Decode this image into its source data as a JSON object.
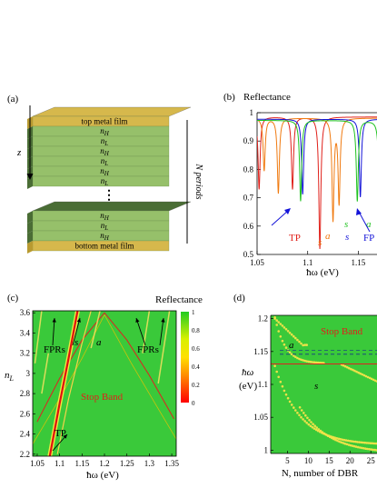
{
  "panel_a": {
    "label": "(a)",
    "top_film": "top metal film",
    "bottom_film": "bottom metal film",
    "layers_top": [
      "n_H",
      "n_L",
      "n_H",
      "n_L",
      "n_H",
      "n_L"
    ],
    "layers_bottom": [
      "n_H",
      "n_L",
      "n_H"
    ],
    "z_label": "z",
    "periods_label": "N periods",
    "colors": {
      "dark_layer": "#4a6d35",
      "light_layer": "#96c06a",
      "metal": "#d6b84c"
    }
  },
  "panel_b": {
    "label": "(b)",
    "title": "Reflectance",
    "xlabel": "ħω (eV)",
    "xticks": [
      "1.05",
      "1.1",
      "1.15"
    ],
    "yticks": [
      "0.5",
      "0.6",
      "0.7",
      "0.8",
      "0.9",
      "1"
    ],
    "annotations": {
      "tp": "TP",
      "fp": "FP",
      "s": "s",
      "a": "a"
    },
    "colors": {
      "red": "#e0201a",
      "orange": "#f07a10",
      "green": "#1fc21f",
      "blue": "#1414d8",
      "pink": "#f0a8a0"
    }
  },
  "panel_c": {
    "label": "(c)",
    "title": "Reflectance",
    "xlabel": "ħω (eV)",
    "ylabel": "n_L",
    "xticks": [
      "1.05",
      "1.1",
      "1.15",
      "1.2",
      "1.25",
      "1.3",
      "1.35"
    ],
    "yticks": [
      "2.2",
      "2.4",
      "2.6",
      "2.8",
      "3",
      "3.2",
      "3.4",
      "3.6"
    ],
    "colorbar_ticks": [
      "0",
      "0.2",
      "0.4",
      "0.6",
      "0.8",
      "1"
    ],
    "annotations": {
      "fprs_left": "FPRs",
      "fprs_right": "FPRs",
      "stop_band": "Stop Band",
      "tp": "TP",
      "s": "s",
      "a": "a"
    }
  },
  "panel_d": {
    "label": "(d)",
    "xlabel": "N, number of DBR",
    "ylabel": "ħω",
    "ylabel_unit": "(eV)",
    "xticks": [
      "5",
      "10",
      "15",
      "20",
      "25"
    ],
    "yticks": [
      "1",
      "1.05",
      "1.1",
      "1.15",
      "1.2"
    ],
    "annotations": {
      "stop_band": "Stop Band",
      "s": "s",
      "a": "a"
    }
  },
  "chart_data": [
    {
      "type": "line",
      "panel": "(b)",
      "title": "Reflectance",
      "xlabel": "ħω (eV)",
      "ylabel": "",
      "xlim": [
        1.05,
        1.19
      ],
      "ylim": [
        0.5,
        1.0
      ],
      "series": [
        {
          "color": "#e0201a",
          "dips": [
            [
              1.052,
              0.73
            ],
            [
              1.085,
              0.73
            ],
            [
              1.112,
              0.52
            ]
          ]
        },
        {
          "color": "#f07a10",
          "dips": [
            [
              1.057,
              0.8
            ],
            [
              1.071,
              0.72
            ],
            [
              1.125,
              0.63
            ],
            [
              1.131,
              0.69
            ]
          ]
        },
        {
          "color": "#1414d8",
          "dips": [
            [
              1.095,
              0.72
            ],
            [
              1.152,
              0.71
            ]
          ]
        },
        {
          "color": "#1fc21f",
          "dips": [
            [
              1.093,
              0.7
            ],
            [
              1.149,
              0.7
            ],
            [
              1.171,
              0.71
            ],
            [
              1.178,
              0.8
            ]
          ]
        }
      ]
    },
    {
      "type": "heatmap",
      "panel": "(c)",
      "title": "Reflectance",
      "xlabel": "ħω (eV)",
      "ylabel": "n_L",
      "xlim": [
        1.04,
        1.36
      ],
      "ylim": [
        2.18,
        3.62
      ],
      "colorbar_range": [
        0,
        1
      ]
    },
    {
      "type": "heatmap",
      "panel": "(d)",
      "xlabel": "N, number of DBR",
      "ylabel": "ħω (eV)",
      "xlim": [
        1,
        28
      ],
      "ylim": [
        0.995,
        1.205
      ]
    }
  ]
}
